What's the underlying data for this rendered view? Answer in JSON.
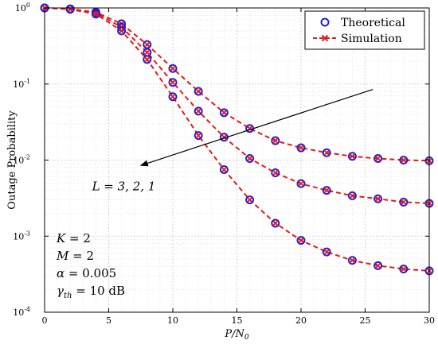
{
  "chart_data": {
    "type": "line",
    "xlabel": "P/N",
    "xlabel_sub": "0",
    "ylabel": "Outage Probability",
    "xlim": [
      0,
      30
    ],
    "ylim": [
      0.0001,
      1
    ],
    "yscale": "log",
    "x_ticks": [
      0,
      5,
      10,
      15,
      20,
      25,
      30
    ],
    "y_ticks": [
      {
        "base": "10",
        "exp": "0",
        "value": 1
      },
      {
        "base": "10",
        "exp": "-1",
        "value": 0.1
      },
      {
        "base": "10",
        "exp": "-2",
        "value": 0.01
      },
      {
        "base": "10",
        "exp": "-3",
        "value": 0.001
      },
      {
        "base": "10",
        "exp": "-4",
        "value": 0.0001
      }
    ],
    "grid": true,
    "legend_position": "top-right",
    "legend": [
      {
        "label": "Theoretical",
        "marker": "circle",
        "color": "#1f1fd6"
      },
      {
        "label": "Simulation",
        "marker": "x",
        "line": "dashed",
        "color": "#e31a1c"
      }
    ],
    "x": [
      0,
      2,
      4,
      6,
      8,
      10,
      12,
      14,
      16,
      18,
      20,
      22,
      24,
      26,
      28,
      30
    ],
    "series": [
      {
        "values": [
          1.0,
          0.97,
          0.88,
          0.62,
          0.33,
          0.16,
          0.08,
          0.042,
          0.026,
          0.018,
          0.0145,
          0.0125,
          0.0112,
          0.0105,
          0.01,
          0.0098
        ]
      },
      {
        "values": [
          1.0,
          0.97,
          0.86,
          0.56,
          0.26,
          0.105,
          0.044,
          0.02,
          0.0105,
          0.0068,
          0.0049,
          0.004,
          0.0034,
          0.0031,
          0.0028,
          0.0027
        ]
      },
      {
        "values": [
          1.0,
          0.96,
          0.83,
          0.5,
          0.21,
          0.068,
          0.021,
          0.0075,
          0.003,
          0.00148,
          0.00088,
          0.00062,
          0.00048,
          0.00041,
          0.00037,
          0.00035
        ]
      }
    ],
    "annotation_arrow": {
      "label": "L = 3, 2, 1",
      "from": [
        25.6,
        0.085
      ],
      "to": [
        7.5,
        0.0085
      ]
    },
    "parameters": [
      {
        "symbol": "K",
        "value": "= 2"
      },
      {
        "symbol": "M",
        "value": "= 2"
      },
      {
        "symbol": "α",
        "value": "= 0.005"
      },
      {
        "symbol": "γ",
        "sub": "th",
        "value": "= 10 dB"
      }
    ]
  }
}
